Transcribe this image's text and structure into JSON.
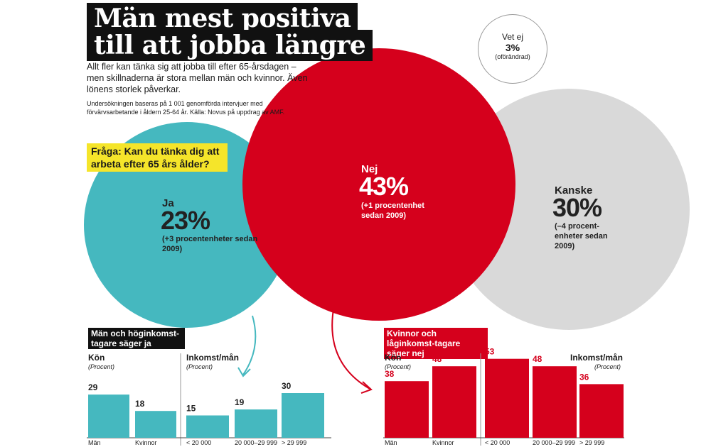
{
  "title_lines": [
    "Män mest positiva",
    "till att jobba längre"
  ],
  "lead": "Allt fler kan tänka sig att jobba till efter 65-årsdagen – men skillnaderna är stora mellan män och kvinnor. Även lönens storlek påverkar.",
  "method": "Undersökningen baseras på 1 001 genomförda intervjuer med förvärvsarbetande i åldern 25-64 år. Källa: Novus på uppdrag av AMF.",
  "question": "Fråga: Kan du tänka dig att arbeta efter 65 års ålder?",
  "colors": {
    "teal": "#45b8bf",
    "red": "#d5001c",
    "grey": "#d9d9d9",
    "yellow": "#f5e52a"
  },
  "answers": {
    "ja": {
      "label": "Ja",
      "pct": "23%",
      "change": "(+3 procentenheter sedan 2009)"
    },
    "nej": {
      "label": "Nej",
      "pct": "43%",
      "change": "(+1 procentenhet sedan 2009)"
    },
    "kanske": {
      "label": "Kanske",
      "pct": "30%",
      "change": "(–4 procent-enheter sedan 2009)"
    },
    "vetej": {
      "label": "Vet ej",
      "pct": "3%",
      "change": "(oförändrad)"
    }
  },
  "left_section": {
    "title": "Män och höginkomst-tagare säger ja",
    "kon_title": "Kön",
    "kon_sub": "(Procent)",
    "ink_title": "Inkomst/mån",
    "ink_sub": "(Procent)"
  },
  "right_section": {
    "title": "Kvinnor och låginkomst-tagare säger nej",
    "kon_title": "Kön",
    "kon_sub": "(Procent)",
    "ink_title": "Inkomst/mån",
    "ink_sub": "(Procent)"
  },
  "chart_data": [
    {
      "type": "pie",
      "title": "Fråga: Kan du tänka dig att arbeta efter 65 års ålder?",
      "categories": [
        "Ja",
        "Nej",
        "Kanske",
        "Vet ej"
      ],
      "values": [
        23,
        43,
        30,
        3
      ]
    },
    {
      "type": "bar",
      "title": "Män och höginkomst-tagare säger ja",
      "xlabel": "Kön",
      "ylabel": "(Procent)",
      "categories": [
        "Män",
        "Kvinnor"
      ],
      "values": [
        29,
        18
      ]
    },
    {
      "type": "bar",
      "title": "Män och höginkomst-tagare säger ja",
      "xlabel": "Inkomst/mån",
      "ylabel": "(Procent)",
      "categories": [
        "< 20 000",
        "20 000–29 999",
        "> 29 999"
      ],
      "values": [
        15,
        19,
        30
      ]
    },
    {
      "type": "bar",
      "title": "Kvinnor och låginkomst-tagare säger nej",
      "xlabel": "Kön",
      "ylabel": "(Procent)",
      "categories": [
        "Män",
        "Kvinnor"
      ],
      "values": [
        38,
        48
      ]
    },
    {
      "type": "bar",
      "title": "Kvinnor och låginkomst-tagare säger nej",
      "xlabel": "Inkomst/mån",
      "ylabel": "(Procent)",
      "categories": [
        "< 20 000",
        "20 000–29 999",
        "> 29 999"
      ],
      "values": [
        53,
        48,
        36
      ]
    }
  ]
}
